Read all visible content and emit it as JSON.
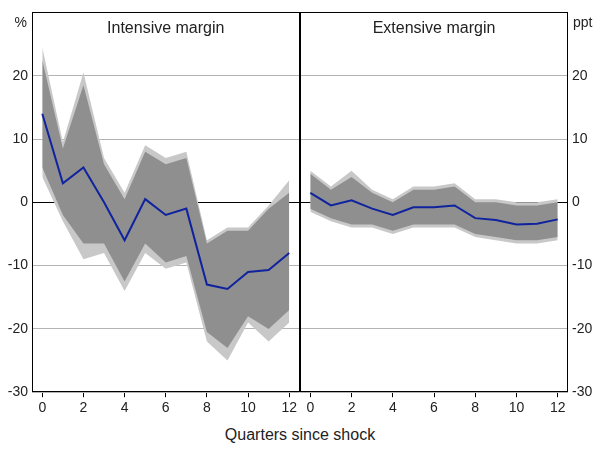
{
  "xlabel": "Quarters since shock",
  "chart_data": [
    {
      "type": "line",
      "title": "Intensive margin",
      "ylabel": "%",
      "x": [
        0,
        1,
        2,
        3,
        4,
        5,
        6,
        7,
        8,
        9,
        10,
        11,
        12
      ],
      "series": [
        {
          "type": "line",
          "color": "#10239e",
          "values": [
            14,
            3,
            5.5,
            0,
            -6,
            0.5,
            -2,
            -1,
            -13,
            -13.7,
            -11,
            -10.7,
            -8
          ]
        }
      ],
      "bands": [
        {
          "color": "#c8c8c8",
          "upper": [
            24.5,
            9.5,
            20.5,
            7,
            1.5,
            9,
            7,
            8,
            -6,
            -4,
            -4,
            -0.5,
            3.5
          ],
          "lower": [
            4,
            -3,
            -9,
            -8,
            -14,
            -8,
            -10.5,
            -9.5,
            -22,
            -25,
            -19,
            -22,
            -19
          ]
        },
        {
          "color": "#8f8f8f",
          "upper": [
            22.5,
            8.5,
            18.5,
            6,
            0.5,
            8,
            6,
            7,
            -6.5,
            -4.5,
            -4.5,
            -1,
            1.5
          ],
          "lower": [
            5.5,
            -2,
            -6.5,
            -6.5,
            -12.5,
            -6.5,
            -9.5,
            -8.5,
            -20.5,
            -23,
            -18,
            -20,
            -17
          ]
        }
      ],
      "xlim": [
        -0.5,
        12.5
      ],
      "xticks": [
        0,
        2,
        4,
        6,
        8,
        10,
        12
      ],
      "ylim": [
        -30,
        30
      ],
      "yticks": [
        -30,
        -20,
        -10,
        0,
        10,
        20
      ],
      "grid": true
    },
    {
      "type": "line",
      "title": "Extensive margin",
      "ylabel": "ppt",
      "x": [
        0,
        1,
        2,
        3,
        4,
        5,
        6,
        7,
        8,
        9,
        10,
        11,
        12
      ],
      "series": [
        {
          "type": "line",
          "color": "#10239e",
          "values": [
            1.5,
            -0.5,
            0.3,
            -1,
            -2,
            -0.8,
            -0.8,
            -0.5,
            -2.5,
            -2.8,
            -3.5,
            -3.4,
            -2.7
          ]
        }
      ],
      "bands": [
        {
          "color": "#c8c8c8",
          "upper": [
            5,
            2.5,
            5,
            2,
            0.5,
            2.5,
            2.5,
            3,
            0.5,
            0.5,
            0,
            0,
            0.5
          ],
          "lower": [
            -1.5,
            -3,
            -4,
            -4,
            -5,
            -4,
            -4,
            -4,
            -5.5,
            -6,
            -6.5,
            -6.5,
            -6
          ]
        },
        {
          "color": "#8f8f8f",
          "upper": [
            4.5,
            2,
            4,
            1.5,
            0,
            2,
            2,
            2.5,
            0,
            0,
            -0.5,
            -0.5,
            0
          ],
          "lower": [
            -1,
            -2.5,
            -3.5,
            -3.5,
            -4.5,
            -3.5,
            -3.5,
            -3.5,
            -5,
            -5.5,
            -6,
            -6,
            -5.5
          ]
        }
      ],
      "xlim": [
        -0.5,
        12.5
      ],
      "xticks": [
        0,
        2,
        4,
        6,
        8,
        10,
        12
      ],
      "ylim": [
        -30,
        30
      ],
      "yticks": [
        -30,
        -20,
        -10,
        0,
        10,
        20
      ],
      "grid": true
    }
  ]
}
